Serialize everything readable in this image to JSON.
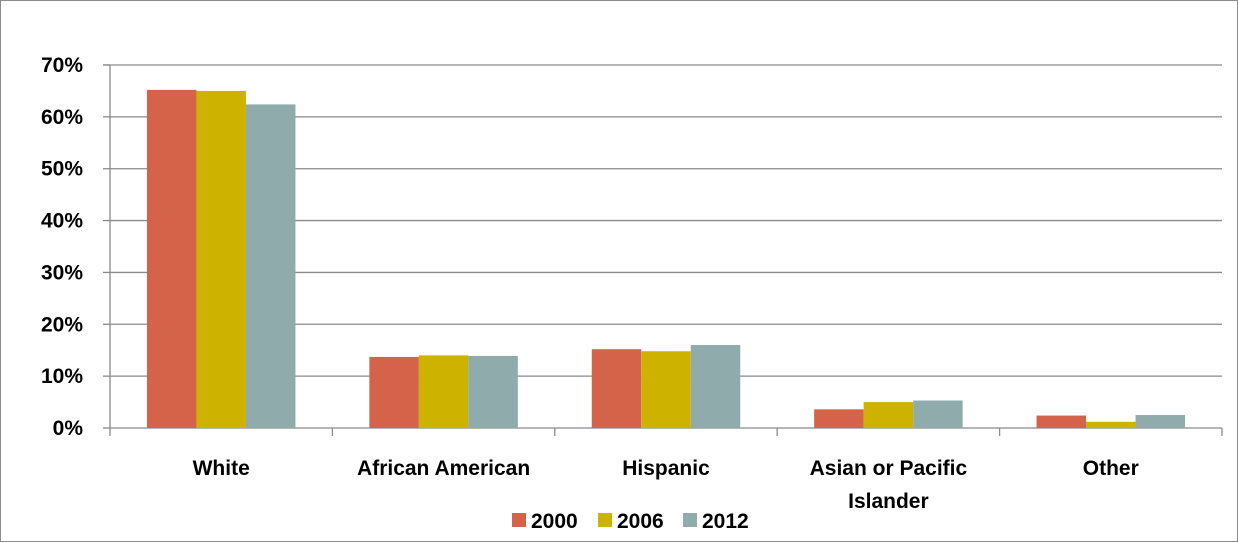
{
  "chart_data": {
    "type": "bar",
    "categories": [
      [
        "White"
      ],
      [
        "African American"
      ],
      [
        "Hispanic"
      ],
      [
        "Asian or Pacific",
        "Islander"
      ],
      [
        "Other"
      ]
    ],
    "series": [
      {
        "name": "2000",
        "color": "#d4634a",
        "values": [
          65.2,
          13.7,
          15.2,
          3.6,
          2.4
        ]
      },
      {
        "name": "2006",
        "color": "#cdb300",
        "values": [
          65.0,
          14.0,
          14.8,
          5.0,
          1.2
        ]
      },
      {
        "name": "2012",
        "color": "#8fabab",
        "values": [
          62.4,
          13.9,
          16.0,
          5.3,
          2.5
        ]
      }
    ],
    "yticks": [
      "0%",
      "10%",
      "20%",
      "30%",
      "40%",
      "50%",
      "60%",
      "70%"
    ],
    "ylim": [
      0,
      70
    ],
    "grid": true,
    "legend": "bottom-center",
    "gridline_color": "#8a8a8a",
    "axis_color": "#8a8a8a"
  }
}
